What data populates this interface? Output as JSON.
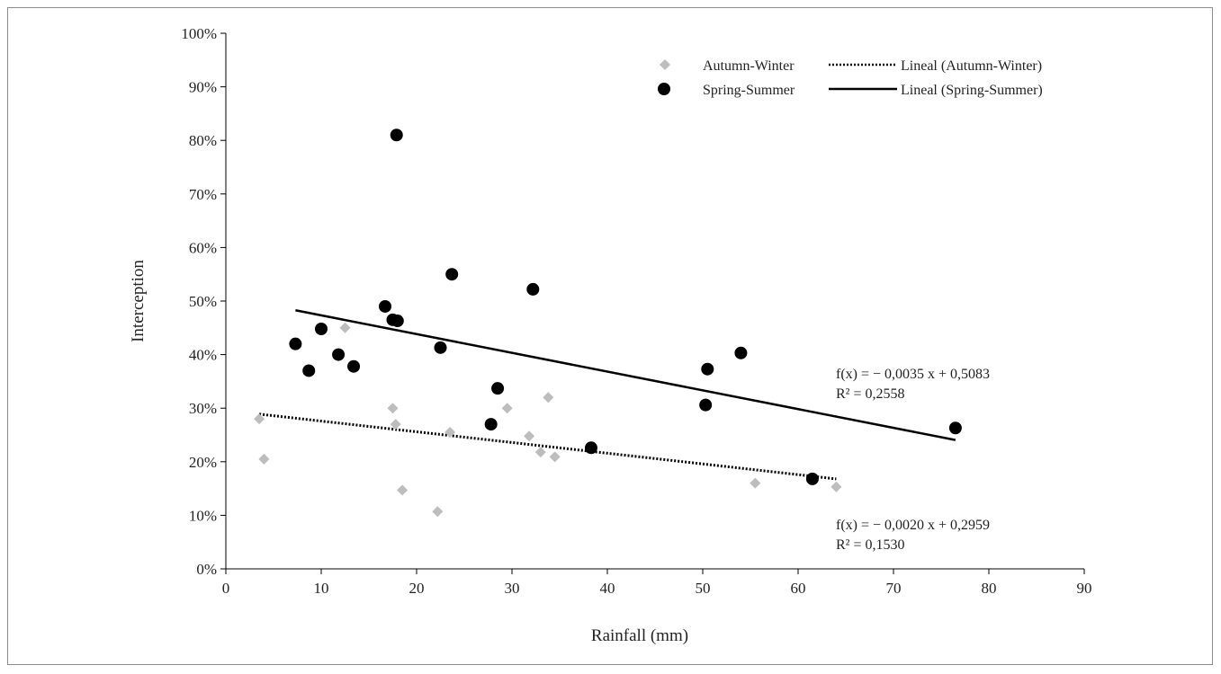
{
  "chart_data": {
    "type": "scatter",
    "title": "",
    "xlabel": "Rainfall (mm)",
    "ylabel": "Interception",
    "xlim": [
      0,
      90
    ],
    "ylim": [
      0,
      1
    ],
    "x_ticks": [
      "0",
      "10",
      "20",
      "30",
      "40",
      "50",
      "60",
      "70",
      "80",
      "90"
    ],
    "y_ticks": [
      "0%",
      "10%",
      "20%",
      "30%",
      "40%",
      "50%",
      "60%",
      "70%",
      "80%",
      "90%",
      "100%"
    ],
    "grid": false,
    "legend_position": "top-right",
    "series": [
      {
        "name": "Autumn-Winter",
        "marker": "diamond",
        "color": "#bdbdbd",
        "points": [
          [
            3.5,
            0.28
          ],
          [
            4.0,
            0.205
          ],
          [
            12.5,
            0.45
          ],
          [
            17.5,
            0.3
          ],
          [
            17.8,
            0.27
          ],
          [
            18.5,
            0.147
          ],
          [
            22.2,
            0.107
          ],
          [
            23.5,
            0.255
          ],
          [
            29.5,
            0.3
          ],
          [
            31.8,
            0.248
          ],
          [
            33.0,
            0.218
          ],
          [
            33.8,
            0.32
          ],
          [
            34.5,
            0.209
          ],
          [
            55.5,
            0.16
          ],
          [
            64.0,
            0.153
          ]
        ]
      },
      {
        "name": "Spring-Summer",
        "marker": "circle",
        "color": "#000000",
        "points": [
          [
            7.3,
            0.42
          ],
          [
            8.7,
            0.37
          ],
          [
            10.0,
            0.448
          ],
          [
            11.8,
            0.4
          ],
          [
            13.4,
            0.378
          ],
          [
            16.7,
            0.49
          ],
          [
            17.5,
            0.465
          ],
          [
            18.0,
            0.463
          ],
          [
            17.9,
            0.81
          ],
          [
            22.5,
            0.413
          ],
          [
            23.7,
            0.55
          ],
          [
            27.8,
            0.27
          ],
          [
            28.5,
            0.337
          ],
          [
            32.2,
            0.522
          ],
          [
            38.3,
            0.226
          ],
          [
            50.3,
            0.306
          ],
          [
            50.5,
            0.373
          ],
          [
            54.0,
            0.403
          ],
          [
            61.5,
            0.168
          ],
          [
            76.5,
            0.263
          ]
        ]
      }
    ],
    "trendlines": [
      {
        "name": "Lineal (Autumn-Winter)",
        "style": "dotted",
        "color": "#000000",
        "x_range": [
          3.5,
          64.0
        ],
        "slope": -0.002,
        "intercept": 0.2959,
        "equation": "f(x) = − 0,0020 x + 0,2959",
        "r2": "R² = 0,1530"
      },
      {
        "name": "Lineal (Spring-Summer)",
        "style": "solid",
        "color": "#000000",
        "x_range": [
          7.3,
          76.5
        ],
        "slope": -0.0035,
        "intercept": 0.5083,
        "equation": "f(x) = − 0,0035 x + 0,5083",
        "r2": "R² = 0,2558"
      }
    ]
  }
}
